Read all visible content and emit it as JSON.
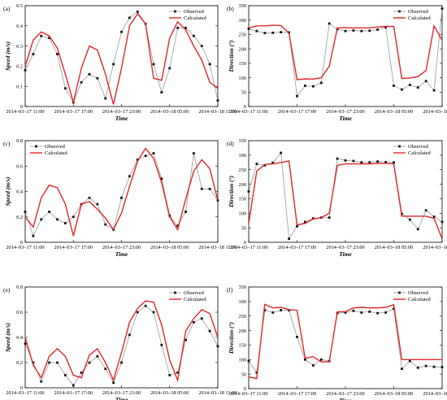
{
  "chart_data": [
    {
      "id": "a",
      "panel_label": "(a)",
      "type": "line",
      "xlabel": "Time",
      "ylabel": "Speed (m/s)",
      "ylim": [
        0,
        0.5
      ],
      "yticks": [
        "0",
        "0.1",
        "0.2",
        "0.3",
        "0.4",
        "0.5"
      ],
      "legend": "top-right",
      "series": [
        {
          "name": "Observed",
          "color": "#999999",
          "marker": "square",
          "x": [
            0,
            1,
            2,
            3,
            4,
            5,
            6,
            7,
            8,
            9,
            10,
            11,
            12,
            13,
            14,
            15,
            16,
            17,
            18,
            19,
            20,
            21,
            22,
            23,
            24
          ],
          "y": [
            0.18,
            0.26,
            0.35,
            0.34,
            0.26,
            0.09,
            0.02,
            0.12,
            0.16,
            0.14,
            0.04,
            0.21,
            0.37,
            0.44,
            0.47,
            0.41,
            0.21,
            0.07,
            0.19,
            0.39,
            0.39,
            0.35,
            0.3,
            0.21,
            0.03
          ]
        },
        {
          "name": "Calculated",
          "color": "#e0272a",
          "x": [
            0,
            1,
            2,
            3,
            4,
            5,
            6,
            7,
            8,
            9,
            10,
            11,
            12,
            13,
            14,
            15,
            16,
            17,
            18,
            19,
            20,
            21,
            22,
            23,
            24
          ],
          "y": [
            0.2,
            0.33,
            0.37,
            0.35,
            0.29,
            0.16,
            0.02,
            0.19,
            0.3,
            0.28,
            0.16,
            0.01,
            0.19,
            0.4,
            0.46,
            0.41,
            0.14,
            0.13,
            0.34,
            0.42,
            0.38,
            0.3,
            0.23,
            0.12,
            0.09
          ]
        }
      ]
    },
    {
      "id": "b",
      "panel_label": "(b)",
      "type": "line",
      "xlabel": "Time",
      "ylabel": "Direction (°)",
      "ylim": [
        0,
        350
      ],
      "yticks": [
        "0",
        "50",
        "100",
        "150",
        "200",
        "250",
        "300",
        "350"
      ],
      "legend": "top-right",
      "series": [
        {
          "name": "Observed",
          "color": "#999999",
          "marker": "square",
          "x": [
            0,
            1,
            2,
            3,
            4,
            5,
            6,
            7,
            8,
            9,
            10,
            11,
            12,
            13,
            14,
            15,
            16,
            17,
            18,
            19,
            20,
            21,
            22,
            23,
            24
          ],
          "y": [
            270,
            262,
            255,
            256,
            258,
            257,
            36,
            72,
            70,
            82,
            288,
            268,
            262,
            264,
            262,
            263,
            267,
            275,
            72,
            59,
            75,
            66,
            88,
            56,
            340
          ]
        },
        {
          "name": "Calculated",
          "color": "#e0272a",
          "x": [
            0,
            1,
            2,
            3,
            4,
            5,
            6,
            7,
            8,
            9,
            10,
            11,
            12,
            13,
            14,
            15,
            16,
            17,
            18,
            19,
            20,
            21,
            22,
            23,
            24
          ],
          "y": [
            273,
            280,
            280,
            282,
            281,
            255,
            93,
            96,
            95,
            100,
            140,
            273,
            274,
            273,
            273,
            273,
            276,
            278,
            278,
            97,
            99,
            104,
            125,
            280,
            230
          ]
        }
      ]
    },
    {
      "id": "c",
      "panel_label": "(c)",
      "type": "line",
      "xlabel": "Time",
      "ylabel": "Speed (m/s)",
      "ylim": [
        0,
        0.8
      ],
      "yticks": [
        "0",
        "0.2",
        "0.4",
        "0.6",
        "0.8"
      ],
      "legend": "top-left",
      "series": [
        {
          "name": "Observed",
          "color": "#999999",
          "marker": "square",
          "x": [
            0,
            1,
            2,
            3,
            4,
            5,
            6,
            7,
            8,
            9,
            10,
            11,
            12,
            13,
            14,
            15,
            16,
            17,
            18,
            19,
            20,
            21,
            22,
            23,
            24
          ],
          "y": [
            0.24,
            0.05,
            0.18,
            0.24,
            0.18,
            0.15,
            0.2,
            0.3,
            0.35,
            0.3,
            0.14,
            0.1,
            0.35,
            0.52,
            0.65,
            0.68,
            0.7,
            0.5,
            0.21,
            0.13,
            0.24,
            0.7,
            0.42,
            0.42,
            0.33
          ]
        },
        {
          "name": "Calculated",
          "color": "#e0272a",
          "x": [
            0,
            1,
            2,
            3,
            4,
            5,
            6,
            7,
            8,
            9,
            10,
            11,
            12,
            13,
            14,
            15,
            16,
            17,
            18,
            19,
            20,
            21,
            22,
            23,
            24
          ],
          "y": [
            0.2,
            0.12,
            0.35,
            0.45,
            0.43,
            0.3,
            0.05,
            0.3,
            0.32,
            0.26,
            0.19,
            0.1,
            0.23,
            0.44,
            0.64,
            0.74,
            0.66,
            0.47,
            0.2,
            0.1,
            0.34,
            0.56,
            0.65,
            0.58,
            0.33
          ]
        }
      ]
    },
    {
      "id": "d",
      "panel_label": "(d)",
      "type": "line",
      "xlabel": "Time",
      "ylabel": "Direction (°)",
      "ylim": [
        0,
        350
      ],
      "yticks": [
        "0",
        "50",
        "100",
        "150",
        "200",
        "250",
        "300",
        "350"
      ],
      "legend": "top-right",
      "series": [
        {
          "name": "Observed",
          "color": "#999999",
          "marker": "square",
          "x": [
            0,
            1,
            2,
            3,
            4,
            5,
            6,
            7,
            8,
            9,
            10,
            11,
            12,
            13,
            14,
            15,
            16,
            17,
            18,
            19,
            20,
            21,
            22,
            23,
            24
          ],
          "y": [
            175,
            270,
            265,
            274,
            308,
            12,
            55,
            70,
            82,
            85,
            85,
            288,
            282,
            280,
            275,
            275,
            278,
            276,
            275,
            98,
            78,
            45,
            110,
            88,
            70
          ]
        },
        {
          "name": "Calculated",
          "color": "#e0272a",
          "x": [
            0,
            1,
            2,
            3,
            4,
            5,
            6,
            7,
            8,
            9,
            10,
            11,
            12,
            13,
            14,
            15,
            16,
            17,
            18,
            19,
            20,
            21,
            22,
            23,
            24
          ],
          "y": [
            65,
            245,
            268,
            270,
            275,
            280,
            60,
            65,
            80,
            85,
            100,
            265,
            270,
            270,
            270,
            270,
            272,
            272,
            270,
            90,
            90,
            90,
            90,
            82,
            12
          ]
        }
      ]
    },
    {
      "id": "e",
      "panel_label": "(e)",
      "type": "line",
      "xlabel": "Time",
      "ylabel": "Speed (m/s)",
      "ylim": [
        0,
        0.8
      ],
      "yticks": [
        "0",
        "0.2",
        "0.4",
        "0.6",
        "0.8"
      ],
      "legend": "top-right",
      "series": [
        {
          "name": "Observed",
          "color": "#999999",
          "marker": "square",
          "x": [
            0,
            1,
            2,
            3,
            4,
            5,
            6,
            7,
            8,
            9,
            10,
            11,
            12,
            13,
            14,
            15,
            16,
            17,
            18,
            19,
            20,
            21,
            22,
            23,
            24
          ],
          "y": [
            0.35,
            0.2,
            0.05,
            0.2,
            0.2,
            0.1,
            0.02,
            0.12,
            0.2,
            0.25,
            0.15,
            0.04,
            0.2,
            0.42,
            0.6,
            0.65,
            0.6,
            0.34,
            0.1,
            0.12,
            0.38,
            0.52,
            0.55,
            0.45,
            0.33
          ]
        },
        {
          "name": "Calculated",
          "color": "#e0272a",
          "x": [
            0,
            1,
            2,
            3,
            4,
            5,
            6,
            7,
            8,
            9,
            10,
            11,
            12,
            13,
            14,
            15,
            16,
            17,
            18,
            19,
            20,
            21,
            22,
            23,
            24
          ],
          "y": [
            0.4,
            0.18,
            0.08,
            0.25,
            0.31,
            0.25,
            0.1,
            0.08,
            0.26,
            0.31,
            0.2,
            0.06,
            0.28,
            0.52,
            0.63,
            0.69,
            0.68,
            0.5,
            0.22,
            0.06,
            0.45,
            0.55,
            0.62,
            0.59,
            0.4
          ]
        }
      ]
    },
    {
      "id": "f",
      "panel_label": "(f)",
      "type": "line",
      "xlabel": "Time",
      "ylabel": "Direction (°)",
      "ylim": [
        0,
        350
      ],
      "yticks": [
        "0",
        "50",
        "100",
        "150",
        "200",
        "250",
        "300",
        "350"
      ],
      "legend": "top-right",
      "series": [
        {
          "name": "Observed",
          "color": "#999999",
          "marker": "square",
          "x": [
            0,
            1,
            2,
            3,
            4,
            5,
            6,
            7,
            8,
            9,
            10,
            11,
            12,
            13,
            14,
            15,
            16,
            17,
            18,
            19,
            20,
            21,
            22,
            23,
            24
          ],
          "y": [
            95,
            55,
            270,
            262,
            270,
            270,
            178,
            100,
            80,
            100,
            95,
            260,
            262,
            268,
            262,
            265,
            260,
            262,
            275,
            68,
            95,
            72,
            78,
            75,
            74
          ]
        },
        {
          "name": "Calculated",
          "color": "#e0272a",
          "x": [
            0,
            1,
            2,
            3,
            4,
            5,
            6,
            7,
            8,
            9,
            10,
            11,
            12,
            13,
            14,
            15,
            16,
            17,
            18,
            19,
            20,
            21,
            22,
            23,
            24
          ],
          "y": [
            40,
            35,
            290,
            278,
            280,
            272,
            270,
            105,
            110,
            92,
            92,
            265,
            265,
            278,
            280,
            278,
            278,
            280,
            289,
            100,
            100,
            100,
            100,
            100,
            100
          ]
        }
      ]
    }
  ],
  "xtick_labels": [
    "2014–03–17 11:00",
    "2014–03–17 17:00",
    "2014–03–17 23:00",
    "2014–03–18 05:00",
    "2014–03–18 11:00"
  ],
  "xtick_positions": [
    0,
    6,
    12,
    18,
    24
  ]
}
